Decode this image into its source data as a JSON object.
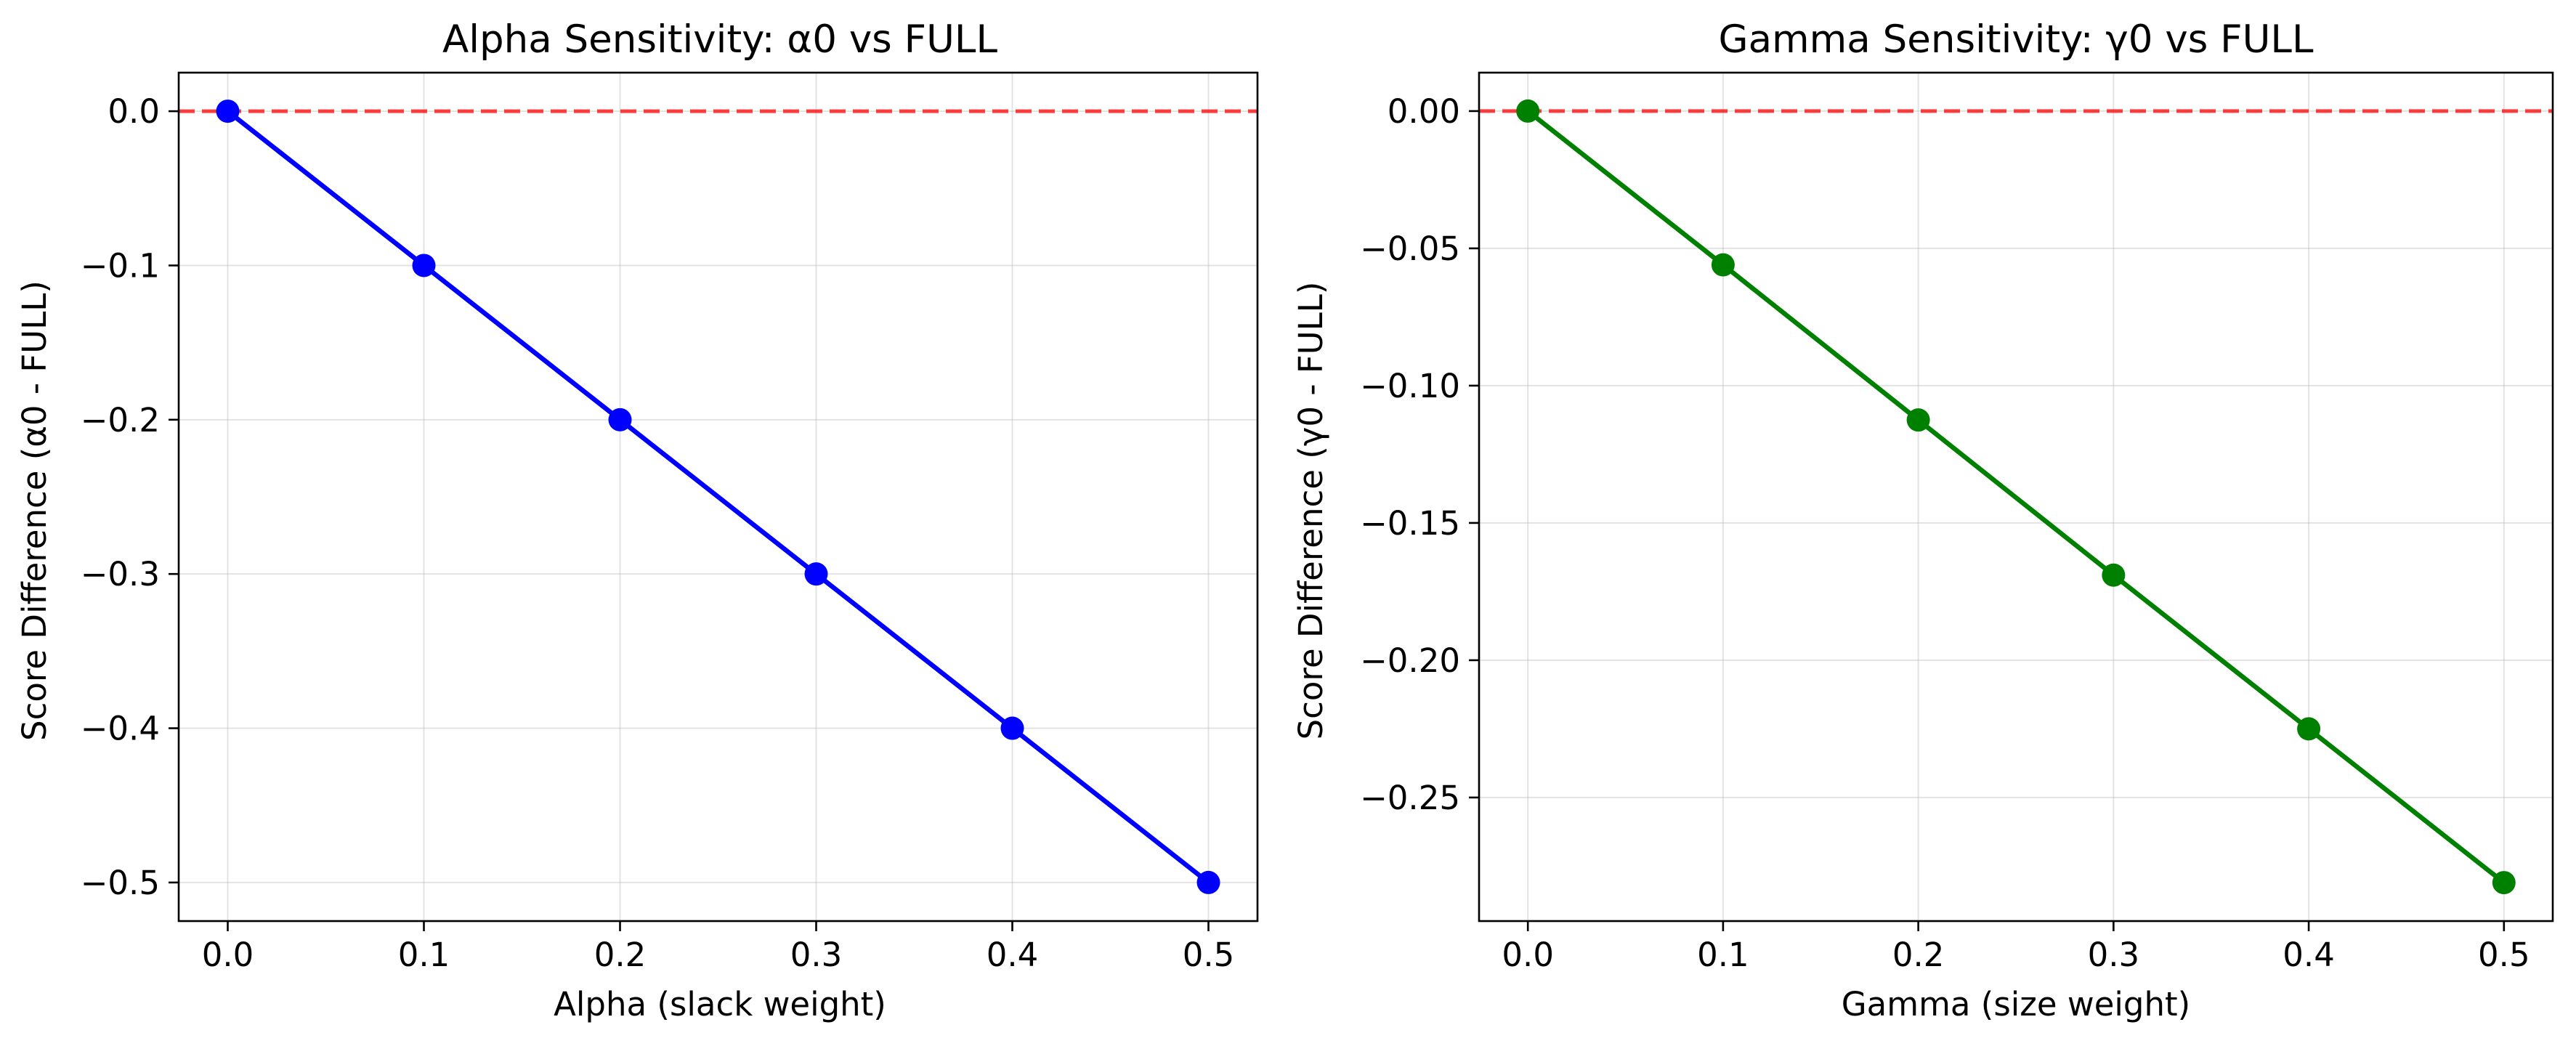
{
  "chart_data": [
    {
      "type": "line",
      "title": "Alpha Sensitivity: α0 vs FULL",
      "xlabel": "Alpha (slack weight)",
      "ylabel": "Score Difference (α0 - FULL)",
      "x": [
        0.0,
        0.1,
        0.2,
        0.3,
        0.4,
        0.5
      ],
      "series": [
        {
          "name": "Score Difference (α0 - FULL)",
          "values": [
            0.0,
            -0.1,
            -0.2,
            -0.3,
            -0.4,
            -0.5
          ],
          "color": "#0000ff"
        }
      ],
      "reference_line": {
        "y": 0.0,
        "color": "#ff0000",
        "style": "dashed"
      },
      "xlim": [
        -0.025,
        0.525
      ],
      "ylim": [
        -0.525,
        0.025
      ],
      "xticks": [
        0.0,
        0.1,
        0.2,
        0.3,
        0.4,
        0.5
      ],
      "xtick_labels": [
        "0.0",
        "0.1",
        "0.2",
        "0.3",
        "0.4",
        "0.5"
      ],
      "yticks": [
        0.0,
        -0.1,
        -0.2,
        -0.3,
        -0.4,
        -0.5
      ],
      "ytick_labels": [
        "0.0",
        "−0.1",
        "−0.2",
        "−0.3",
        "−0.4",
        "−0.5"
      ],
      "grid": true
    },
    {
      "type": "line",
      "title": "Gamma Sensitivity: γ0 vs FULL",
      "xlabel": "Gamma (size weight)",
      "ylabel": "Score Difference (γ0 - FULL)",
      "x": [
        0.0,
        0.1,
        0.2,
        0.3,
        0.4,
        0.5
      ],
      "series": [
        {
          "name": "Score Difference (γ0 - FULL)",
          "values": [
            0.0,
            -0.056,
            -0.1125,
            -0.169,
            -0.225,
            -0.281
          ],
          "color": "#008000"
        }
      ],
      "reference_line": {
        "y": 0.0,
        "color": "#ff0000",
        "style": "dashed"
      },
      "xlim": [
        -0.025,
        0.525
      ],
      "ylim": [
        -0.295,
        0.014
      ],
      "xticks": [
        0.0,
        0.1,
        0.2,
        0.3,
        0.4,
        0.5
      ],
      "xtick_labels": [
        "0.0",
        "0.1",
        "0.2",
        "0.3",
        "0.4",
        "0.5"
      ],
      "yticks": [
        0.0,
        -0.05,
        -0.1,
        -0.15,
        -0.2,
        -0.25
      ],
      "ytick_labels": [
        "0.00",
        "−0.05",
        "−0.10",
        "−0.15",
        "−0.20",
        "−0.25"
      ],
      "grid": true
    }
  ]
}
